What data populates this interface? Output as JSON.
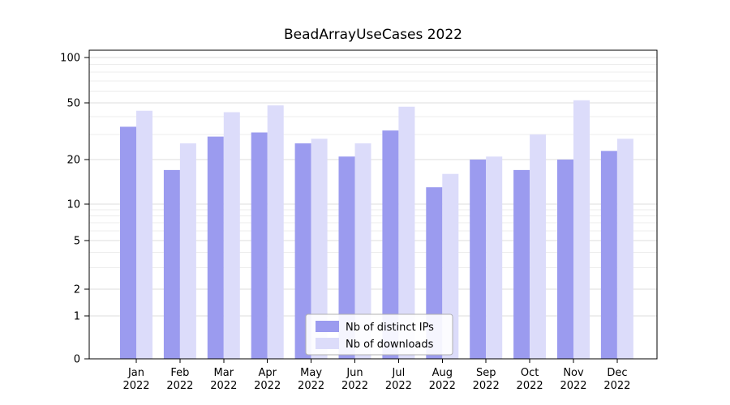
{
  "figure": {
    "background": "#ffffff",
    "axes_color": "#000000",
    "grid_major_color": "#dcdcdc",
    "grid_minor_color": "#ececec"
  },
  "chart_data": {
    "type": "bar",
    "title": "BeadArrayUseCases 2022",
    "xlabel": "",
    "ylabel": "",
    "year_label": "2022",
    "categories": [
      "Jan",
      "Feb",
      "Mar",
      "Apr",
      "May",
      "Jun",
      "Jul",
      "Aug",
      "Sep",
      "Oct",
      "Nov",
      "Dec"
    ],
    "series": [
      {
        "name": "Nb of distinct IPs",
        "color": "#9b9bef",
        "values": [
          34,
          17,
          29,
          31,
          26,
          21,
          32,
          13,
          20,
          17,
          20,
          23
        ]
      },
      {
        "name": "Nb of downloads",
        "color": "#dcdcfa",
        "values": [
          44,
          26,
          43,
          48,
          28,
          26,
          47,
          16,
          21,
          30,
          52,
          28
        ]
      }
    ],
    "yticks": [
      0,
      1,
      2,
      5,
      10,
      20,
      50,
      100
    ],
    "minor_gridline_values": [
      3,
      4,
      6,
      7,
      8,
      9,
      30,
      40,
      60,
      70,
      80,
      90
    ],
    "scale": "symlog",
    "ylim": [
      0,
      120
    ],
    "grid": "horizontal major and minor gridlines",
    "legend_position": "lower center"
  }
}
